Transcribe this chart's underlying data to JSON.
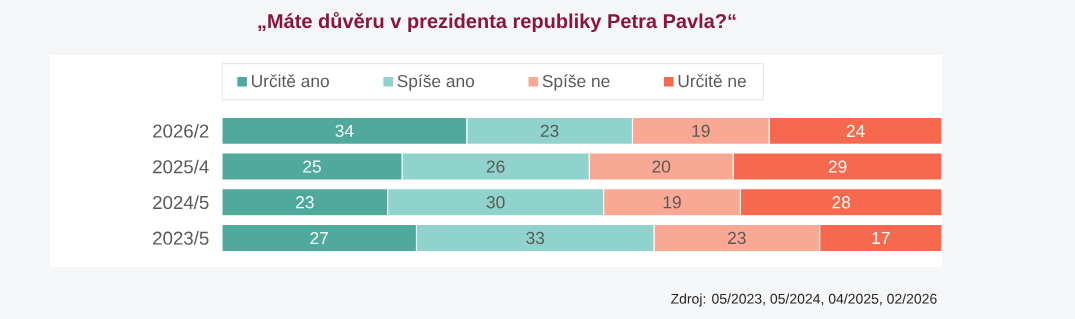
{
  "chart_data": {
    "type": "bar",
    "orientation": "horizontal",
    "stacked": true,
    "title": "„Máte důvěru v prezidenta republiky Petra Pavla?“",
    "categories": [
      "2026/2",
      "2025/4",
      "2024/5",
      "2023/5"
    ],
    "series": [
      {
        "name": "Určitě ano",
        "color": "#4fa99d",
        "values": [
          34,
          25,
          23,
          27
        ]
      },
      {
        "name": "Spíše ano",
        "color": "#8fd3cc",
        "values": [
          23,
          26,
          30,
          33
        ]
      },
      {
        "name": "Spíše ne",
        "color": "#f9a894",
        "values": [
          19,
          20,
          19,
          23
        ]
      },
      {
        "name": "Určitě ne",
        "color": "#f7694f",
        "values": [
          24,
          29,
          28,
          17
        ]
      }
    ],
    "tick_labels": "y",
    "legend": "top",
    "data_labels": true,
    "annotations": [
      "Zdroj: 05/2023, 05/2024, 04/2025, 02/2026"
    ]
  }
}
